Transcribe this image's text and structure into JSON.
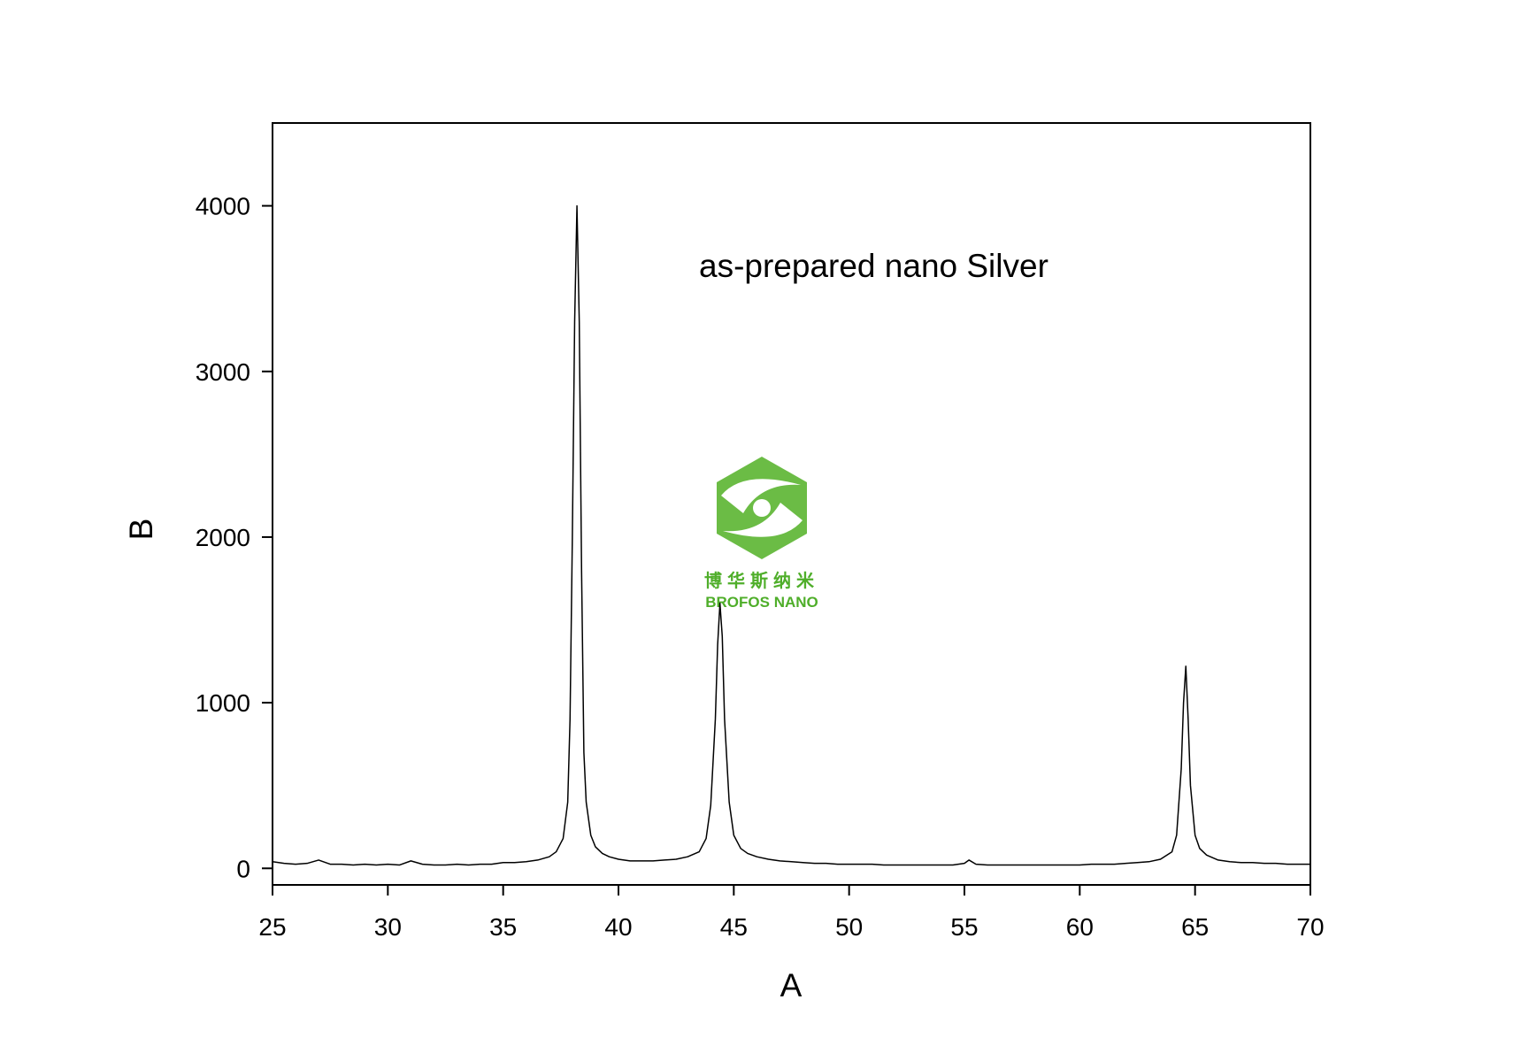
{
  "chart_data": {
    "type": "line",
    "annotation": "as-prepared nano Silver",
    "watermark": [
      "博华斯纳米",
      "BROFOS NANO"
    ],
    "x_label": "A",
    "y_label": "B",
    "xlim": [
      25,
      70
    ],
    "ylim": [
      -100,
      4500
    ],
    "xticks": [
      25,
      30,
      35,
      40,
      45,
      50,
      55,
      60,
      65,
      70
    ],
    "yticks": [
      0,
      1000,
      2000,
      3000,
      4000
    ],
    "color": "#000000",
    "x": [
      25,
      25.5,
      26,
      26.5,
      27,
      27.5,
      28,
      28.5,
      29,
      29.5,
      30,
      30.5,
      31,
      31.5,
      32,
      32.5,
      33,
      33.5,
      34,
      34.5,
      35,
      35.5,
      36,
      36.5,
      37,
      37.3,
      37.6,
      37.8,
      37.9,
      38.0,
      38.1,
      38.2,
      38.3,
      38.4,
      38.5,
      38.6,
      38.8,
      39.0,
      39.3,
      39.6,
      40,
      40.5,
      41,
      41.5,
      42,
      42.5,
      43,
      43.5,
      43.8,
      44.0,
      44.2,
      44.3,
      44.4,
      44.5,
      44.6,
      44.8,
      45.0,
      45.3,
      45.6,
      46,
      46.5,
      47,
      47.5,
      48,
      48.5,
      49,
      49.5,
      50,
      50.5,
      51,
      51.5,
      52,
      52.5,
      53,
      53.5,
      54,
      54.5,
      55,
      55.2,
      55.5,
      56,
      56.5,
      57,
      57.5,
      58,
      58.5,
      59,
      59.5,
      60,
      60.5,
      61,
      61.5,
      62,
      62.5,
      63,
      63.5,
      64,
      64.2,
      64.4,
      64.5,
      64.6,
      64.7,
      64.8,
      65.0,
      65.2,
      65.5,
      66,
      66.5,
      67,
      67.5,
      68,
      68.5,
      69,
      69.5,
      70
    ],
    "values": [
      40,
      30,
      25,
      30,
      50,
      25,
      25,
      20,
      25,
      20,
      25,
      20,
      45,
      25,
      20,
      20,
      25,
      20,
      25,
      25,
      35,
      35,
      40,
      50,
      70,
      100,
      180,
      400,
      900,
      2000,
      3300,
      4000,
      3300,
      1800,
      700,
      400,
      200,
      130,
      90,
      70,
      55,
      45,
      45,
      45,
      50,
      55,
      70,
      100,
      180,
      380,
      900,
      1350,
      1600,
      1400,
      900,
      400,
      200,
      120,
      90,
      70,
      55,
      45,
      40,
      35,
      30,
      30,
      25,
      25,
      25,
      25,
      20,
      20,
      20,
      20,
      20,
      20,
      20,
      30,
      50,
      25,
      20,
      20,
      20,
      20,
      20,
      20,
      20,
      20,
      20,
      25,
      25,
      25,
      30,
      35,
      40,
      55,
      100,
      200,
      600,
      1000,
      1220,
      900,
      500,
      200,
      120,
      80,
      50,
      40,
      35,
      35,
      30,
      30,
      25,
      25,
      25
    ]
  }
}
